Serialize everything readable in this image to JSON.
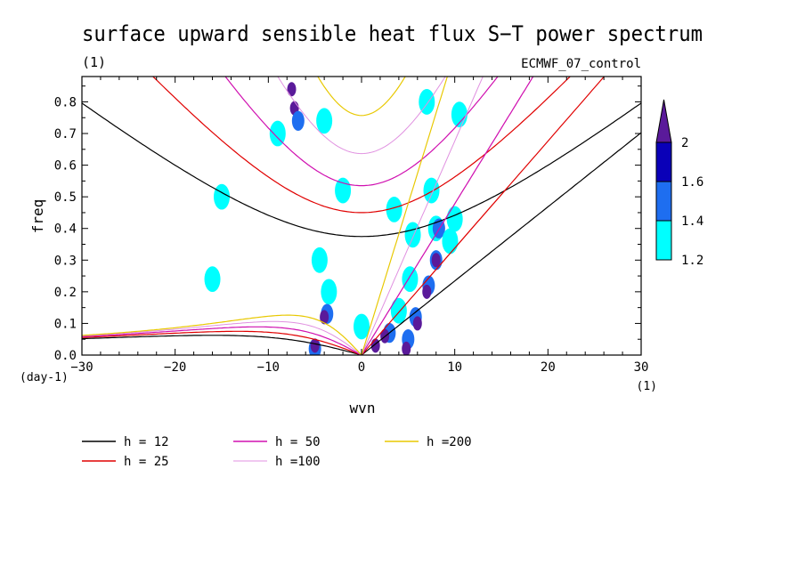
{
  "chart_data": {
    "type": "line",
    "title": "surface upward sensible heat flux S−T power spectrum",
    "subtitle_left": "(1)",
    "subtitle_right": "ECMWF_07_control",
    "xlabel": "wvn",
    "ylabel": "freq",
    "x_unit_label": "(1)",
    "y_unit_label": "(day-1)",
    "xlim": [
      -30,
      30
    ],
    "ylim": [
      0,
      0.88
    ],
    "xticks": [
      "-30",
      "-20",
      "-10",
      "0",
      "10",
      "20",
      "30"
    ],
    "yticks": [
      "0.0",
      "0.1",
      "0.2",
      "0.3",
      "0.4",
      "0.5",
      "0.6",
      "0.7",
      "0.8"
    ],
    "legend_position": "bottom",
    "series": [
      {
        "name": "h = 12",
        "equivalent_depth_m": 12,
        "color": "#000000"
      },
      {
        "name": "h = 25",
        "equivalent_depth_m": 25,
        "color": "#e00000"
      },
      {
        "name": "h = 50",
        "equivalent_depth_m": 50,
        "color": "#d010b0"
      },
      {
        "name": "h =100",
        "equivalent_depth_m": 100,
        "color": "#e090e0"
      },
      {
        "name": "h =200",
        "equivalent_depth_m": 200,
        "color": "#e8c800"
      }
    ],
    "contour_colorbar": {
      "levels": [
        "1.2",
        "1.4",
        "1.6",
        "2"
      ],
      "colors": [
        "#00ffff",
        "#1e6ef0",
        "#0a00b8",
        "#5a1a9a"
      ]
    },
    "contour_blobs": [
      {
        "x": -7.5,
        "y": 0.84,
        "level": 3
      },
      {
        "x": -7.2,
        "y": 0.78,
        "level": 3
      },
      {
        "x": -6.8,
        "y": 0.74,
        "level": 1
      },
      {
        "x": -9.0,
        "y": 0.7,
        "level": 0
      },
      {
        "x": -4.0,
        "y": 0.74,
        "level": 0
      },
      {
        "x": 7.0,
        "y": 0.8,
        "level": 0
      },
      {
        "x": 10.5,
        "y": 0.76,
        "level": 0
      },
      {
        "x": -2.0,
        "y": 0.52,
        "level": 0
      },
      {
        "x": 3.5,
        "y": 0.46,
        "level": 0
      },
      {
        "x": 7.5,
        "y": 0.52,
        "level": 0
      },
      {
        "x": 10.0,
        "y": 0.43,
        "level": 0
      },
      {
        "x": 8.0,
        "y": 0.4,
        "level": 0
      },
      {
        "x": 8.3,
        "y": 0.4,
        "level": 1
      },
      {
        "x": 5.5,
        "y": 0.38,
        "level": 0
      },
      {
        "x": 9.5,
        "y": 0.36,
        "level": 0
      },
      {
        "x": 8.0,
        "y": 0.3,
        "level": 1
      },
      {
        "x": 8.0,
        "y": 0.3,
        "level": 3
      },
      {
        "x": 7.2,
        "y": 0.22,
        "level": 1
      },
      {
        "x": 7.0,
        "y": 0.2,
        "level": 3
      },
      {
        "x": 5.8,
        "y": 0.12,
        "level": 1
      },
      {
        "x": 6.0,
        "y": 0.1,
        "level": 3
      },
      {
        "x": 5.0,
        "y": 0.05,
        "level": 1
      },
      {
        "x": 3.0,
        "y": 0.07,
        "level": 1
      },
      {
        "x": 2.5,
        "y": 0.06,
        "level": 3
      },
      {
        "x": 4.8,
        "y": 0.02,
        "level": 3
      },
      {
        "x": 1.5,
        "y": 0.03,
        "level": 3
      },
      {
        "x": 4.0,
        "y": 0.14,
        "level": 0
      },
      {
        "x": 5.2,
        "y": 0.24,
        "level": 0
      },
      {
        "x": -4.5,
        "y": 0.3,
        "level": 0
      },
      {
        "x": -3.5,
        "y": 0.2,
        "level": 0
      },
      {
        "x": -3.7,
        "y": 0.13,
        "level": 1
      },
      {
        "x": -4.0,
        "y": 0.12,
        "level": 3
      },
      {
        "x": -5.0,
        "y": 0.02,
        "level": 1
      },
      {
        "x": -5.0,
        "y": 0.03,
        "level": 3
      },
      {
        "x": 0.0,
        "y": 0.09,
        "level": 0
      },
      {
        "x": -16.0,
        "y": 0.24,
        "level": 0
      },
      {
        "x": -15.0,
        "y": 0.5,
        "level": 0
      }
    ]
  }
}
